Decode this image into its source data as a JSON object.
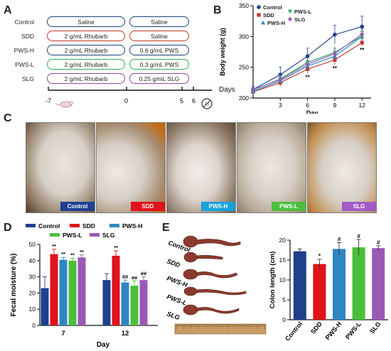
{
  "panels": {
    "a": "A",
    "b": "B",
    "c": "C",
    "d": "D",
    "e": "E"
  },
  "panelA": {
    "rows": [
      {
        "group": "Control",
        "left": "Saline",
        "right": "Saline",
        "color": "#1f3f7a"
      },
      {
        "group": "SDD",
        "left": "2 g/mL  Rhubarb",
        "right": "Saline",
        "color": "#c0392b"
      },
      {
        "group": "PWS-H",
        "left": "2 g/mL  Rhubarb",
        "right": "0.6 g/mL  PWS",
        "color": "#2e86c1"
      },
      {
        "group": "PWS-L",
        "left": "2 g/mL  Rhubarb",
        "right": "0.3 g/mL  PWS",
        "color": "#27ae60"
      },
      {
        "group": "SLG",
        "left": "2 g/mL  Rhubarb",
        "right": "0.25 g/mL  SLG",
        "color": "#8e44ad"
      }
    ],
    "timeline": {
      "ticks": [
        "-7",
        "0",
        "5",
        "6"
      ],
      "label": "Days"
    }
  },
  "panelC": {
    "tags": [
      {
        "label": "Control",
        "bg": "#1f3f8f"
      },
      {
        "label": "SDD",
        "bg": "#e0121b"
      },
      {
        "label": "PWS-H",
        "bg": "#1aa0d8"
      },
      {
        "label": "PWS-L",
        "bg": "#4bbf3c"
      },
      {
        "label": "SLG",
        "bg": "#a15bc5"
      }
    ]
  },
  "panelE": {
    "groups": [
      "Control",
      "SDD",
      "PWS-H",
      "PWS-L",
      "SLG"
    ]
  },
  "chart_data": [
    {
      "type": "line",
      "panel": "B",
      "xlabel": "Day",
      "ylabel": "Body weight (g)",
      "xticks": [
        3,
        6,
        9,
        12
      ],
      "yticks": [
        200,
        250,
        300,
        350
      ],
      "ylim": [
        200,
        350
      ],
      "x": [
        0,
        3,
        6,
        9,
        12
      ],
      "series": [
        {
          "name": "Control",
          "color": "#1f3f8f",
          "marker": "circle",
          "values": [
            214,
            238,
            268,
            303,
            316
          ],
          "errors": [
            5,
            12,
            13,
            15,
            17
          ]
        },
        {
          "name": "SDD",
          "color": "#c0392b",
          "marker": "square",
          "values": [
            210,
            225,
            247,
            262,
            290
          ],
          "errors": [
            5,
            6,
            7,
            8,
            6
          ]
        },
        {
          "name": "PWS-H",
          "color": "#2e86c1",
          "marker": "triangle",
          "values": [
            211,
            228,
            252,
            268,
            300
          ],
          "errors": [
            6,
            6,
            7,
            8,
            8
          ]
        },
        {
          "name": "PWS-L",
          "color": "#27ae60",
          "marker": "triangle-down",
          "values": [
            213,
            231,
            258,
            274,
            301
          ],
          "errors": [
            5,
            6,
            7,
            8,
            8
          ]
        },
        {
          "name": "SLG",
          "color": "#9b59b6",
          "marker": "diamond",
          "values": [
            214,
            230,
            255,
            272,
            304
          ],
          "errors": [
            5,
            6,
            7,
            8,
            8
          ]
        }
      ],
      "annotations": [
        {
          "x": 6,
          "text": "**"
        },
        {
          "x": 9,
          "text": "**"
        },
        {
          "x": 12,
          "text": "**"
        }
      ]
    },
    {
      "type": "bar",
      "panel": "D",
      "xlabel": "Day",
      "ylabel": "Fecal moisture (%)",
      "categories": [
        "7",
        "12"
      ],
      "yticks": [
        0,
        10,
        20,
        30,
        40,
        50
      ],
      "ylim": [
        0,
        50
      ],
      "series": [
        {
          "name": "Control",
          "color": "#1f3f8f",
          "values": [
            23,
            28
          ],
          "errors": [
            7,
            4
          ],
          "marks": [
            "",
            ""
          ]
        },
        {
          "name": "SDD",
          "color": "#e0121b",
          "values": [
            44,
            43
          ],
          "errors": [
            3,
            3
          ],
          "marks": [
            "**",
            "**"
          ]
        },
        {
          "name": "PWS-H",
          "color": "#2e86c1",
          "values": [
            40.5,
            26.5
          ],
          "errors": [
            1.5,
            1.5
          ],
          "marks": [
            "**",
            "##"
          ]
        },
        {
          "name": "PWS-L",
          "color": "#4bbf3c",
          "values": [
            40,
            24.5
          ],
          "errors": [
            1.5,
            3
          ],
          "marks": [
            "**",
            "##"
          ]
        },
        {
          "name": "SLG",
          "color": "#9b59b6",
          "values": [
            42,
            28
          ],
          "errors": [
            1.5,
            2
          ],
          "marks": [
            "**",
            "##"
          ]
        }
      ]
    },
    {
      "type": "bar",
      "panel": "E",
      "ylabel": "Colon length (cm)",
      "categories": [
        "Control",
        "SDD",
        "PWS-H",
        "PWS-L",
        "SLG"
      ],
      "yticks": [
        0,
        5,
        10,
        15,
        20
      ],
      "ylim": [
        0,
        20
      ],
      "colors": [
        "#1f3f8f",
        "#e0121b",
        "#2e86c1",
        "#4bbf3c",
        "#9b59b6"
      ],
      "values": [
        17.2,
        14.0,
        17.8,
        18.2,
        18.0
      ],
      "errors": [
        0.6,
        1.2,
        1.6,
        2.0,
        0.6
      ],
      "marks": [
        "",
        "*",
        "#",
        "#",
        "#"
      ]
    }
  ]
}
